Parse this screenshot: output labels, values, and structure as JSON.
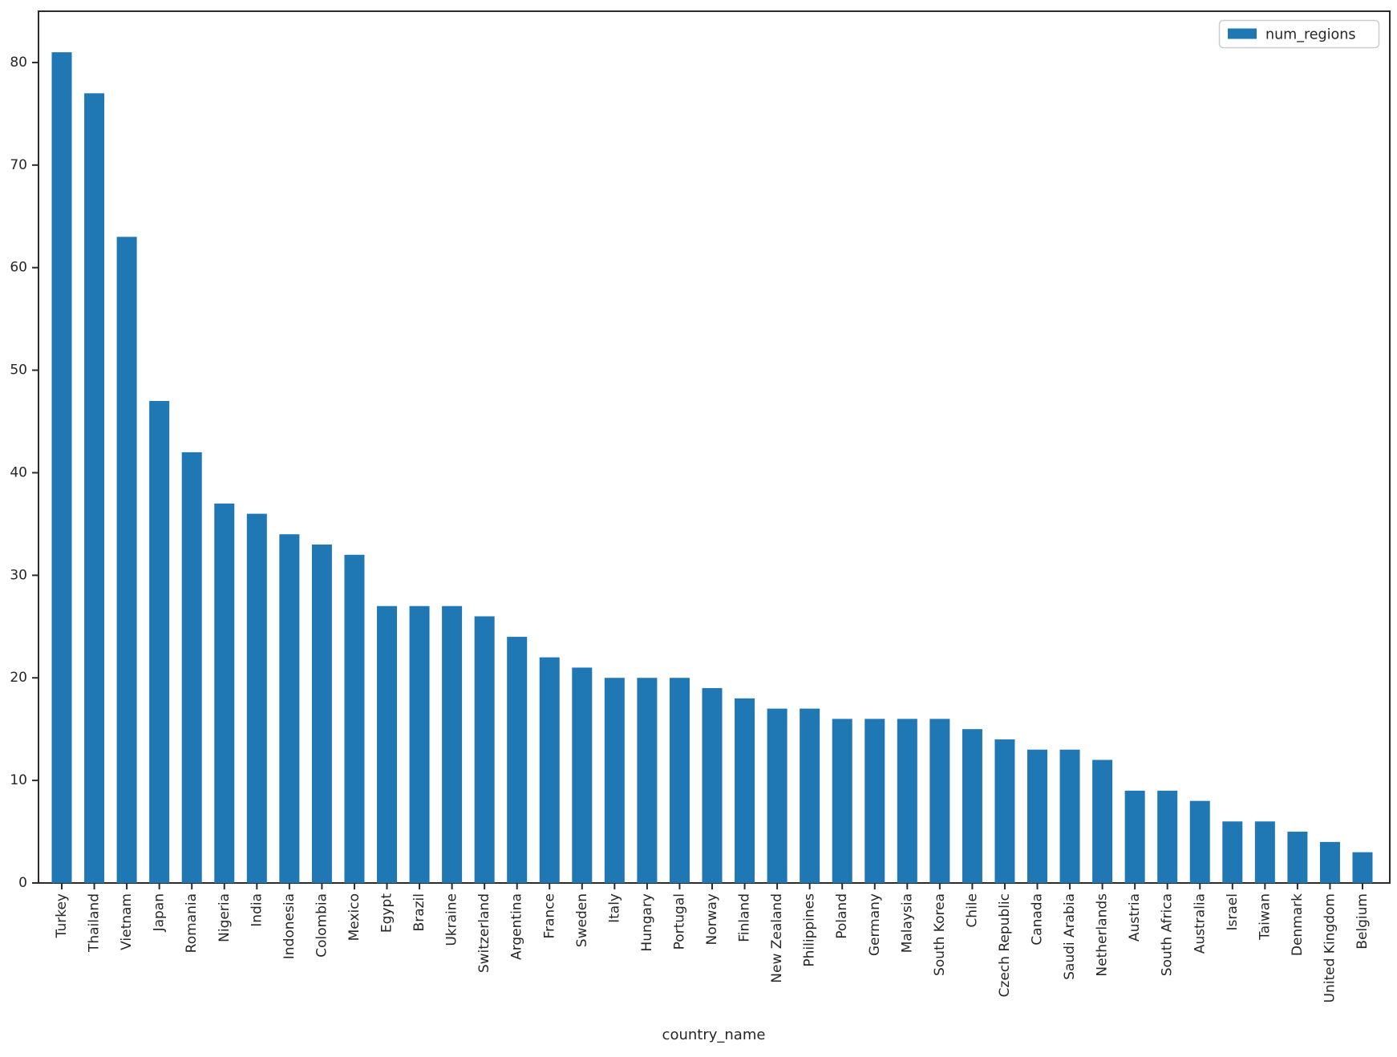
{
  "figure": {
    "background": "#ffffff"
  },
  "legend": {
    "label": "num_regions",
    "position": "upper right"
  },
  "chart_data": {
    "type": "bar",
    "title": "",
    "xlabel": "country_name",
    "ylabel": "",
    "ylim": [
      0,
      85
    ],
    "yticks": [
      0,
      10,
      20,
      30,
      40,
      50,
      60,
      70,
      80
    ],
    "grid": false,
    "legend_position": "upper right",
    "bar_color": "#1f77b4",
    "categories": [
      "Turkey",
      "Thailand",
      "Vietnam",
      "Japan",
      "Romania",
      "Nigeria",
      "India",
      "Indonesia",
      "Colombia",
      "Mexico",
      "Egypt",
      "Brazil",
      "Ukraine",
      "Switzerland",
      "Argentina",
      "France",
      "Sweden",
      "Italy",
      "Hungary",
      "Portugal",
      "Norway",
      "Finland",
      "New Zealand",
      "Philippines",
      "Poland",
      "Germany",
      "Malaysia",
      "South Korea",
      "Chile",
      "Czech Republic",
      "Canada",
      "Saudi Arabia",
      "Netherlands",
      "Austria",
      "South Africa",
      "Australia",
      "Israel",
      "Taiwan",
      "Denmark",
      "United Kingdom",
      "Belgium"
    ],
    "series": [
      {
        "name": "num_regions",
        "values": [
          81,
          77,
          63,
          47,
          42,
          37,
          36,
          34,
          33,
          32,
          27,
          27,
          27,
          26,
          24,
          22,
          21,
          20,
          20,
          20,
          19,
          18,
          17,
          17,
          16,
          16,
          16,
          16,
          15,
          14,
          13,
          13,
          12,
          9,
          9,
          8,
          6,
          6,
          5,
          4,
          3
        ]
      }
    ]
  }
}
